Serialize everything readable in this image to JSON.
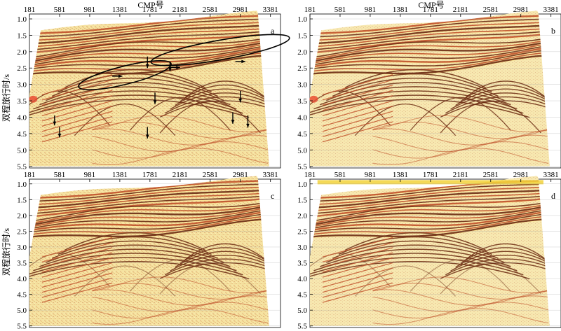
{
  "figure": {
    "x_axis_title": "CMP号",
    "y_axis_title": "双程旅行时/s",
    "cmp_ticks": [
      "181",
      "581",
      "981",
      "1381",
      "1781",
      "2181",
      "2581",
      "2981",
      "3381"
    ],
    "time_ticks": [
      "1.0",
      "1.5",
      "2.0",
      "2.5",
      "3.0",
      "3.5",
      "4.0",
      "4.5",
      "5.0",
      "5.5"
    ],
    "panels": [
      {
        "id": "a",
        "label": "a",
        "annotated": true
      },
      {
        "id": "b",
        "label": "b",
        "annotated": false
      },
      {
        "id": "c",
        "label": "c",
        "annotated": false
      },
      {
        "id": "d",
        "label": "d",
        "annotated": false
      }
    ],
    "colors": {
      "background": "#f5e6a8",
      "event_dark": "#6b2a12",
      "event_mid": "#c0502a",
      "event_light": "#ffe58a",
      "annotation": "#000000"
    }
  }
}
